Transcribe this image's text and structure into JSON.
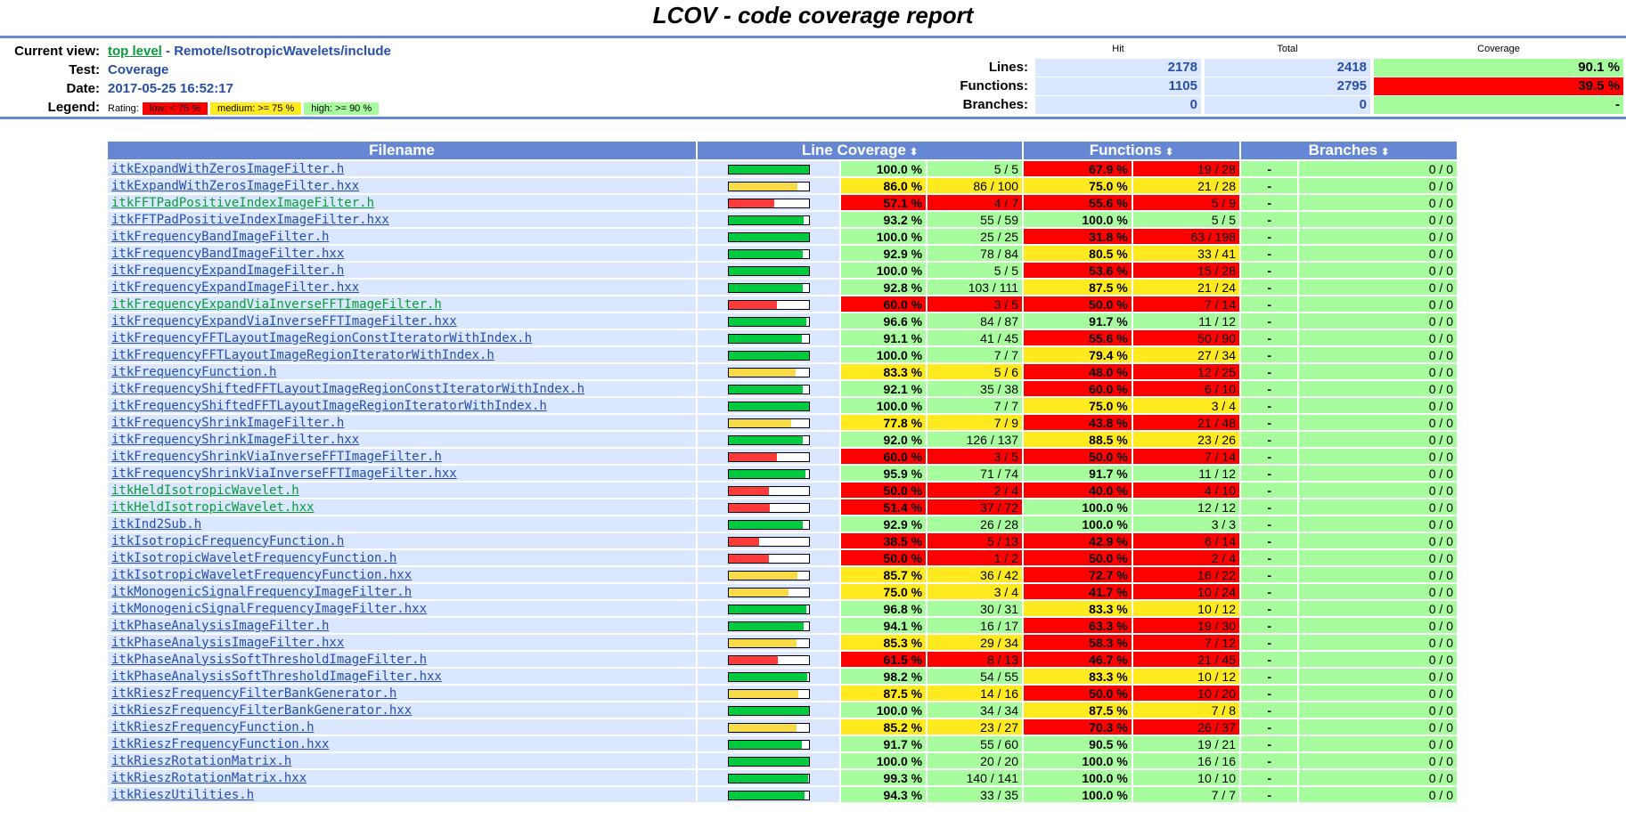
{
  "title": "LCOV - code coverage report",
  "header": {
    "current_view_label": "Current view:",
    "top_level_link": "top level",
    "path_sep": " - ",
    "path": "Remote/IsotropicWavelets/include",
    "test_label": "Test:",
    "test_value": "Coverage",
    "date_label": "Date:",
    "date_value": "2017-05-25 16:52:17",
    "legend_label": "Legend:",
    "legend_rating": "Rating:",
    "legend_low": "low: < 75 %",
    "legend_medium": "medium: >= 75 %",
    "legend_high": "high: >= 90 %",
    "col_hit": "Hit",
    "col_total": "Total",
    "col_coverage": "Coverage",
    "lines_label": "Lines:",
    "lines_hit": "2178",
    "lines_total": "2418",
    "lines_cov": "90.1 %",
    "functions_label": "Functions:",
    "functions_hit": "1105",
    "functions_total": "2795",
    "functions_cov": "39.5 %",
    "branches_label": "Branches:",
    "branches_hit": "0",
    "branches_total": "0",
    "branches_cov": "-"
  },
  "table": {
    "col_filename": "Filename",
    "col_line": "Line Coverage",
    "col_functions": "Functions",
    "col_branches": "Branches",
    "sort_icon": "⬍"
  },
  "colors": {
    "high": "#a7fc9d",
    "medium": "#ffea20",
    "low": "#ff0000",
    "bar_high": "#00cb40",
    "bar_medium": "#f6da48",
    "bar_low": "#ff3a3a"
  },
  "rows": [
    {
      "file": "itkExpandWithZerosImageFilter.h",
      "lpct": "100.0 %",
      "lcnt": "5 / 5",
      "lval": 100,
      "lr": "hi",
      "fpct": "67.9 %",
      "fcnt": "19 / 28",
      "fr": "lo",
      "bpct": "-",
      "bcnt": "0 / 0"
    },
    {
      "file": "itkExpandWithZerosImageFilter.hxx",
      "lpct": "86.0 %",
      "lcnt": "86 / 100",
      "lval": 86,
      "lr": "med",
      "fpct": "75.0 %",
      "fcnt": "21 / 28",
      "fr": "med",
      "bpct": "-",
      "bcnt": "0 / 0"
    },
    {
      "file": "itkFFTPadPositiveIndexImageFilter.h",
      "lpct": "57.1 %",
      "lcnt": "4 / 7",
      "lval": 57.1,
      "lr": "lo",
      "fpct": "55.6 %",
      "fcnt": "5 / 9",
      "fr": "lo",
      "bpct": "-",
      "bcnt": "0 / 0",
      "visited": true
    },
    {
      "file": "itkFFTPadPositiveIndexImageFilter.hxx",
      "lpct": "93.2 %",
      "lcnt": "55 / 59",
      "lval": 93.2,
      "lr": "hi",
      "fpct": "100.0 %",
      "fcnt": "5 / 5",
      "fr": "hi",
      "bpct": "-",
      "bcnt": "0 / 0"
    },
    {
      "file": "itkFrequencyBandImageFilter.h",
      "lpct": "100.0 %",
      "lcnt": "25 / 25",
      "lval": 100,
      "lr": "hi",
      "fpct": "31.8 %",
      "fcnt": "63 / 198",
      "fr": "lo",
      "bpct": "-",
      "bcnt": "0 / 0"
    },
    {
      "file": "itkFrequencyBandImageFilter.hxx",
      "lpct": "92.9 %",
      "lcnt": "78 / 84",
      "lval": 92.9,
      "lr": "hi",
      "fpct": "80.5 %",
      "fcnt": "33 / 41",
      "fr": "med",
      "bpct": "-",
      "bcnt": "0 / 0"
    },
    {
      "file": "itkFrequencyExpandImageFilter.h",
      "lpct": "100.0 %",
      "lcnt": "5 / 5",
      "lval": 100,
      "lr": "hi",
      "fpct": "53.6 %",
      "fcnt": "15 / 28",
      "fr": "lo",
      "bpct": "-",
      "bcnt": "0 / 0"
    },
    {
      "file": "itkFrequencyExpandImageFilter.hxx",
      "lpct": "92.8 %",
      "lcnt": "103 / 111",
      "lval": 92.8,
      "lr": "hi",
      "fpct": "87.5 %",
      "fcnt": "21 / 24",
      "fr": "med",
      "bpct": "-",
      "bcnt": "0 / 0"
    },
    {
      "file": "itkFrequencyExpandViaInverseFFTImageFilter.h",
      "lpct": "60.0 %",
      "lcnt": "3 / 5",
      "lval": 60,
      "lr": "lo",
      "fpct": "50.0 %",
      "fcnt": "7 / 14",
      "fr": "lo",
      "bpct": "-",
      "bcnt": "0 / 0",
      "visited": true
    },
    {
      "file": "itkFrequencyExpandViaInverseFFTImageFilter.hxx",
      "lpct": "96.6 %",
      "lcnt": "84 / 87",
      "lval": 96.6,
      "lr": "hi",
      "fpct": "91.7 %",
      "fcnt": "11 / 12",
      "fr": "hi",
      "bpct": "-",
      "bcnt": "0 / 0"
    },
    {
      "file": "itkFrequencyFFTLayoutImageRegionConstIteratorWithIndex.h",
      "lpct": "91.1 %",
      "lcnt": "41 / 45",
      "lval": 91.1,
      "lr": "hi",
      "fpct": "55.6 %",
      "fcnt": "50 / 90",
      "fr": "lo",
      "bpct": "-",
      "bcnt": "0 / 0"
    },
    {
      "file": "itkFrequencyFFTLayoutImageRegionIteratorWithIndex.h",
      "lpct": "100.0 %",
      "lcnt": "7 / 7",
      "lval": 100,
      "lr": "hi",
      "fpct": "79.4 %",
      "fcnt": "27 / 34",
      "fr": "med",
      "bpct": "-",
      "bcnt": "0 / 0"
    },
    {
      "file": "itkFrequencyFunction.h",
      "lpct": "83.3 %",
      "lcnt": "5 / 6",
      "lval": 83.3,
      "lr": "med",
      "fpct": "48.0 %",
      "fcnt": "12 / 25",
      "fr": "lo",
      "bpct": "-",
      "bcnt": "0 / 0"
    },
    {
      "file": "itkFrequencyShiftedFFTLayoutImageRegionConstIteratorWithIndex.h",
      "lpct": "92.1 %",
      "lcnt": "35 / 38",
      "lval": 92.1,
      "lr": "hi",
      "fpct": "60.0 %",
      "fcnt": "6 / 10",
      "fr": "lo",
      "bpct": "-",
      "bcnt": "0 / 0"
    },
    {
      "file": "itkFrequencyShiftedFFTLayoutImageRegionIteratorWithIndex.h",
      "lpct": "100.0 %",
      "lcnt": "7 / 7",
      "lval": 100,
      "lr": "hi",
      "fpct": "75.0 %",
      "fcnt": "3 / 4",
      "fr": "med",
      "bpct": "-",
      "bcnt": "0 / 0"
    },
    {
      "file": "itkFrequencyShrinkImageFilter.h",
      "lpct": "77.8 %",
      "lcnt": "7 / 9",
      "lval": 77.8,
      "lr": "med",
      "fpct": "43.8 %",
      "fcnt": "21 / 48",
      "fr": "lo",
      "bpct": "-",
      "bcnt": "0 / 0"
    },
    {
      "file": "itkFrequencyShrinkImageFilter.hxx",
      "lpct": "92.0 %",
      "lcnt": "126 / 137",
      "lval": 92,
      "lr": "hi",
      "fpct": "88.5 %",
      "fcnt": "23 / 26",
      "fr": "med",
      "bpct": "-",
      "bcnt": "0 / 0"
    },
    {
      "file": "itkFrequencyShrinkViaInverseFFTImageFilter.h",
      "lpct": "60.0 %",
      "lcnt": "3 / 5",
      "lval": 60,
      "lr": "lo",
      "fpct": "50.0 %",
      "fcnt": "7 / 14",
      "fr": "lo",
      "bpct": "-",
      "bcnt": "0 / 0"
    },
    {
      "file": "itkFrequencyShrinkViaInverseFFTImageFilter.hxx",
      "lpct": "95.9 %",
      "lcnt": "71 / 74",
      "lval": 95.9,
      "lr": "hi",
      "fpct": "91.7 %",
      "fcnt": "11 / 12",
      "fr": "hi",
      "bpct": "-",
      "bcnt": "0 / 0"
    },
    {
      "file": "itkHeldIsotropicWavelet.h",
      "lpct": "50.0 %",
      "lcnt": "2 / 4",
      "lval": 50,
      "lr": "lo",
      "fpct": "40.0 %",
      "fcnt": "4 / 10",
      "fr": "lo",
      "bpct": "-",
      "bcnt": "0 / 0",
      "visited": true
    },
    {
      "file": "itkHeldIsotropicWavelet.hxx",
      "lpct": "51.4 %",
      "lcnt": "37 / 72",
      "lval": 51.4,
      "lr": "lo",
      "fpct": "100.0 %",
      "fcnt": "12 / 12",
      "fr": "hi",
      "bpct": "-",
      "bcnt": "0 / 0",
      "visited": true
    },
    {
      "file": "itkInd2Sub.h",
      "lpct": "92.9 %",
      "lcnt": "26 / 28",
      "lval": 92.9,
      "lr": "hi",
      "fpct": "100.0 %",
      "fcnt": "3 / 3",
      "fr": "hi",
      "bpct": "-",
      "bcnt": "0 / 0"
    },
    {
      "file": "itkIsotropicFrequencyFunction.h",
      "lpct": "38.5 %",
      "lcnt": "5 / 13",
      "lval": 38.5,
      "lr": "lo",
      "fpct": "42.9 %",
      "fcnt": "6 / 14",
      "fr": "lo",
      "bpct": "-",
      "bcnt": "0 / 0"
    },
    {
      "file": "itkIsotropicWaveletFrequencyFunction.h",
      "lpct": "50.0 %",
      "lcnt": "1 / 2",
      "lval": 50,
      "lr": "lo",
      "fpct": "50.0 %",
      "fcnt": "2 / 4",
      "fr": "lo",
      "bpct": "-",
      "bcnt": "0 / 0"
    },
    {
      "file": "itkIsotropicWaveletFrequencyFunction.hxx",
      "lpct": "85.7 %",
      "lcnt": "36 / 42",
      "lval": 85.7,
      "lr": "med",
      "fpct": "72.7 %",
      "fcnt": "16 / 22",
      "fr": "lo",
      "bpct": "-",
      "bcnt": "0 / 0"
    },
    {
      "file": "itkMonogenicSignalFrequencyImageFilter.h",
      "lpct": "75.0 %",
      "lcnt": "3 / 4",
      "lval": 75,
      "lr": "med",
      "fpct": "41.7 %",
      "fcnt": "10 / 24",
      "fr": "lo",
      "bpct": "-",
      "bcnt": "0 / 0"
    },
    {
      "file": "itkMonogenicSignalFrequencyImageFilter.hxx",
      "lpct": "96.8 %",
      "lcnt": "30 / 31",
      "lval": 96.8,
      "lr": "hi",
      "fpct": "83.3 %",
      "fcnt": "10 / 12",
      "fr": "med",
      "bpct": "-",
      "bcnt": "0 / 0"
    },
    {
      "file": "itkPhaseAnalysisImageFilter.h",
      "lpct": "94.1 %",
      "lcnt": "16 / 17",
      "lval": 94.1,
      "lr": "hi",
      "fpct": "63.3 %",
      "fcnt": "19 / 30",
      "fr": "lo",
      "bpct": "-",
      "bcnt": "0 / 0"
    },
    {
      "file": "itkPhaseAnalysisImageFilter.hxx",
      "lpct": "85.3 %",
      "lcnt": "29 / 34",
      "lval": 85.3,
      "lr": "med",
      "fpct": "58.3 %",
      "fcnt": "7 / 12",
      "fr": "lo",
      "bpct": "-",
      "bcnt": "0 / 0"
    },
    {
      "file": "itkPhaseAnalysisSoftThresholdImageFilter.h",
      "lpct": "61.5 %",
      "lcnt": "8 / 13",
      "lval": 61.5,
      "lr": "lo",
      "fpct": "46.7 %",
      "fcnt": "21 / 45",
      "fr": "lo",
      "bpct": "-",
      "bcnt": "0 / 0"
    },
    {
      "file": "itkPhaseAnalysisSoftThresholdImageFilter.hxx",
      "lpct": "98.2 %",
      "lcnt": "54 / 55",
      "lval": 98.2,
      "lr": "hi",
      "fpct": "83.3 %",
      "fcnt": "10 / 12",
      "fr": "med",
      "bpct": "-",
      "bcnt": "0 / 0"
    },
    {
      "file": "itkRieszFrequencyFilterBankGenerator.h",
      "lpct": "87.5 %",
      "lcnt": "14 / 16",
      "lval": 87.5,
      "lr": "med",
      "fpct": "50.0 %",
      "fcnt": "10 / 20",
      "fr": "lo",
      "bpct": "-",
      "bcnt": "0 / 0"
    },
    {
      "file": "itkRieszFrequencyFilterBankGenerator.hxx",
      "lpct": "100.0 %",
      "lcnt": "34 / 34",
      "lval": 100,
      "lr": "hi",
      "fpct": "87.5 %",
      "fcnt": "7 / 8",
      "fr": "med",
      "bpct": "-",
      "bcnt": "0 / 0"
    },
    {
      "file": "itkRieszFrequencyFunction.h",
      "lpct": "85.2 %",
      "lcnt": "23 / 27",
      "lval": 85.2,
      "lr": "med",
      "fpct": "70.3 %",
      "fcnt": "26 / 37",
      "fr": "lo",
      "bpct": "-",
      "bcnt": "0 / 0"
    },
    {
      "file": "itkRieszFrequencyFunction.hxx",
      "lpct": "91.7 %",
      "lcnt": "55 / 60",
      "lval": 91.7,
      "lr": "hi",
      "fpct": "90.5 %",
      "fcnt": "19 / 21",
      "fr": "hi",
      "bpct": "-",
      "bcnt": "0 / 0"
    },
    {
      "file": "itkRieszRotationMatrix.h",
      "lpct": "100.0 %",
      "lcnt": "20 / 20",
      "lval": 100,
      "lr": "hi",
      "fpct": "100.0 %",
      "fcnt": "16 / 16",
      "fr": "hi",
      "bpct": "-",
      "bcnt": "0 / 0"
    },
    {
      "file": "itkRieszRotationMatrix.hxx",
      "lpct": "99.3 %",
      "lcnt": "140 / 141",
      "lval": 99.3,
      "lr": "hi",
      "fpct": "100.0 %",
      "fcnt": "10 / 10",
      "fr": "hi",
      "bpct": "-",
      "bcnt": "0 / 0"
    },
    {
      "file": "itkRieszUtilities.h",
      "lpct": "94.3 %",
      "lcnt": "33 / 35",
      "lval": 94.3,
      "lr": "hi",
      "fpct": "100.0 %",
      "fcnt": "7 / 7",
      "fr": "hi",
      "bpct": "-",
      "bcnt": "0 / 0"
    }
  ]
}
